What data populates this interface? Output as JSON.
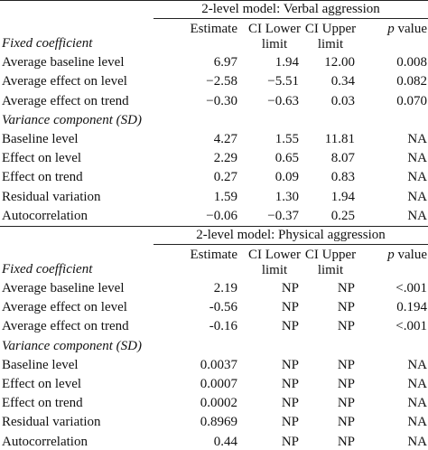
{
  "sections": [
    {
      "title": "2-level model: Verbal aggression",
      "headers": [
        "Estimate",
        "CI Lower limit",
        "CI Upper limit"
      ],
      "p_header": {
        "italic": "p",
        "rest": "value"
      },
      "groups": [
        {
          "label": "Fixed coefficient",
          "rows": [
            [
              "Average baseline level",
              "6.97",
              "1.94",
              "12.00",
              "0.008"
            ],
            [
              "Average effect on level",
              "−2.58",
              "−5.51",
              "0.34",
              "0.082"
            ],
            [
              "Average effect on trend",
              "−0.30",
              "−0.63",
              "0.03",
              "0.070"
            ]
          ]
        },
        {
          "label": "Variance component (SD)",
          "rows": [
            [
              "Baseline level",
              "4.27",
              "1.55",
              "11.81",
              "NA"
            ],
            [
              "Effect on level",
              "2.29",
              "0.65",
              "8.07",
              "NA"
            ],
            [
              "Effect on trend",
              "0.27",
              "0.09",
              "0.83",
              "NA"
            ],
            [
              "Residual variation",
              "1.59",
              "1.30",
              "1.94",
              "NA"
            ],
            [
              "Autocorrelation",
              "−0.06",
              "−0.37",
              "0.25",
              "NA"
            ]
          ]
        }
      ]
    },
    {
      "title": "2-level model: Physical aggression",
      "headers": [
        "Estimate",
        "CI Lower limit",
        "CI Upper limit"
      ],
      "p_header": {
        "italic": "p",
        "rest": "value"
      },
      "groups": [
        {
          "label": "Fixed coefficient",
          "rows": [
            [
              "Average baseline level",
              "2.19",
              "NP",
              "NP",
              "<.001"
            ],
            [
              "Average effect on level",
              "-0.56",
              "NP",
              "NP",
              "0.194"
            ],
            [
              "Average effect on trend",
              "-0.16",
              "NP",
              "NP",
              "<.001"
            ]
          ]
        },
        {
          "label": "Variance component (SD)",
          "rows": [
            [
              "Baseline level",
              "0.0037",
              "NP",
              "NP",
              "NA"
            ],
            [
              "Effect on level",
              "0.0007",
              "NP",
              "NP",
              "NA"
            ],
            [
              "Effect on trend",
              "0.0002",
              "NP",
              "NP",
              "NA"
            ],
            [
              "Residual variation",
              "0.8969",
              "NP",
              "NP",
              "NA"
            ],
            [
              "Autocorrelation",
              "0.44",
              "NP",
              "NP",
              "NA"
            ]
          ]
        }
      ]
    }
  ]
}
